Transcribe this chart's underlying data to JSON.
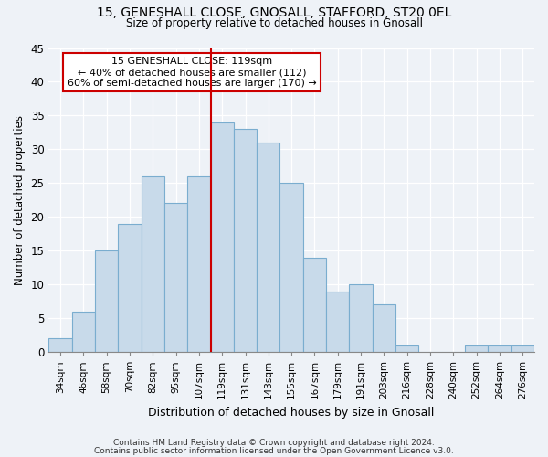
{
  "title1": "15, GENESHALL CLOSE, GNOSALL, STAFFORD, ST20 0EL",
  "title2": "Size of property relative to detached houses in Gnosall",
  "xlabel": "Distribution of detached houses by size in Gnosall",
  "ylabel": "Number of detached properties",
  "footer1": "Contains HM Land Registry data © Crown copyright and database right 2024.",
  "footer2": "Contains public sector information licensed under the Open Government Licence v3.0.",
  "annotation_line1": "15 GENESHALL CLOSE: 119sqm",
  "annotation_line2": "← 40% of detached houses are smaller (112)",
  "annotation_line3": "60% of semi-detached houses are larger (170) →",
  "categories": [
    "34sqm",
    "46sqm",
    "58sqm",
    "70sqm",
    "82sqm",
    "95sqm",
    "107sqm",
    "119sqm",
    "131sqm",
    "143sqm",
    "155sqm",
    "167sqm",
    "179sqm",
    "191sqm",
    "203sqm",
    "216sqm",
    "228sqm",
    "240sqm",
    "252sqm",
    "264sqm",
    "276sqm"
  ],
  "values": [
    2,
    6,
    15,
    19,
    26,
    22,
    26,
    34,
    33,
    31,
    25,
    14,
    9,
    10,
    7,
    1,
    0,
    0,
    1,
    1,
    1
  ],
  "bar_color": "#c8daea",
  "bar_edge_color": "#7aadcf",
  "vline_color": "#cc0000",
  "background_color": "#eef2f7",
  "annotation_box_edge": "#cc0000",
  "grid_color": "#ffffff",
  "ylim": [
    0,
    45
  ],
  "yticks": [
    0,
    5,
    10,
    15,
    20,
    25,
    30,
    35,
    40,
    45
  ],
  "property_bin": "119sqm"
}
